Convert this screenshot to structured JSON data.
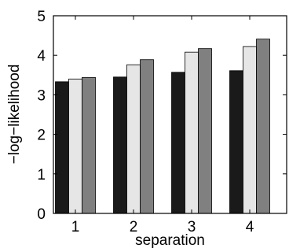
{
  "chart_data": {
    "type": "bar",
    "title": "",
    "xlabel": "separation",
    "ylabel": "−log−likelihood",
    "categories": [
      "1",
      "2",
      "3",
      "4"
    ],
    "series": [
      {
        "values": [
          3.33,
          3.45,
          3.57,
          3.61
        ],
        "color": "#1a1a1a"
      },
      {
        "values": [
          3.4,
          3.76,
          4.08,
          4.22
        ],
        "color": "#e6e6e6"
      },
      {
        "values": [
          3.44,
          3.89,
          4.17,
          4.41
        ],
        "color": "#808080"
      }
    ],
    "ylim": [
      0,
      5
    ],
    "yticks": [
      "0",
      "1",
      "2",
      "3",
      "4",
      "5"
    ],
    "grid": false,
    "legend": "none"
  }
}
